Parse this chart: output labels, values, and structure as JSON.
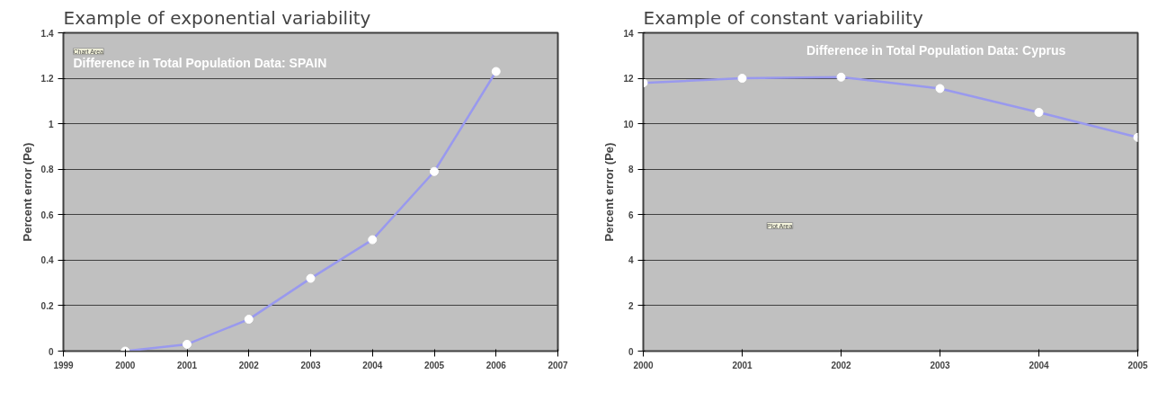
{
  "chart_data": [
    {
      "type": "line",
      "title": "Example of exponential variability",
      "subtitle": "Difference in Total Population Data: SPAIN",
      "ylabel": "Percent error (Pe)",
      "x": [
        2000,
        2001,
        2002,
        2003,
        2004,
        2005,
        2006
      ],
      "series": [
        {
          "color": "#9999ee",
          "values": [
            0,
            0.03,
            0.14,
            0.32,
            0.49,
            0.79,
            1.23
          ]
        }
      ],
      "xlim": [
        1999,
        2007
      ],
      "xticks": [
        1999,
        2000,
        2001,
        2002,
        2003,
        2004,
        2005,
        2006,
        2007
      ],
      "ylim": [
        0,
        1.4
      ],
      "yticks": [
        0,
        0.2,
        0.4,
        0.6,
        0.8,
        1,
        1.2,
        1.4
      ],
      "grid": "y",
      "marker": "circle",
      "annotations": [
        "Chart Area"
      ]
    },
    {
      "type": "line",
      "title": "Example of constant variability",
      "subtitle": "Difference in Total Population Data: Cyprus",
      "ylabel": "Percent error (Pe)",
      "x": [
        2000,
        2001,
        2002,
        2003,
        2004,
        2005
      ],
      "series": [
        {
          "color": "#9999ee",
          "values": [
            11.8,
            12.0,
            12.05,
            11.55,
            10.5,
            9.4
          ]
        }
      ],
      "xlim": [
        2000,
        2005
      ],
      "xticks": [
        2000,
        2001,
        2002,
        2003,
        2004,
        2005
      ],
      "ylim": [
        0,
        14
      ],
      "yticks": [
        0,
        2,
        4,
        6,
        8,
        10,
        12,
        14
      ],
      "grid": "y",
      "marker": "circle",
      "annotations": [
        "Plot Area"
      ]
    }
  ]
}
